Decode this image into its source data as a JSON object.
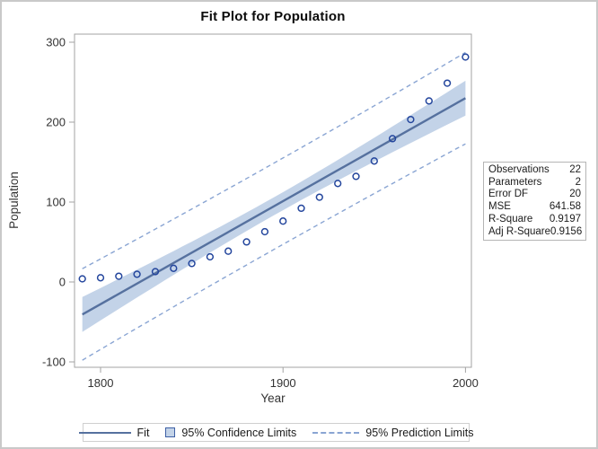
{
  "chart_data": {
    "type": "scatter",
    "title": "Fit Plot for Population",
    "xlabel": "Year",
    "ylabel": "Population",
    "x": [
      1790,
      1800,
      1810,
      1820,
      1830,
      1840,
      1850,
      1860,
      1870,
      1880,
      1890,
      1900,
      1910,
      1920,
      1930,
      1940,
      1950,
      1960,
      1970,
      1980,
      1990,
      2000
    ],
    "y": [
      3.929,
      5.308,
      7.24,
      9.638,
      12.866,
      17.069,
      23.192,
      31.443,
      38.558,
      50.156,
      62.948,
      76.212,
      92.228,
      106.022,
      123.203,
      132.165,
      151.326,
      179.323,
      203.302,
      226.542,
      248.71,
      281.422
    ],
    "xticks": [
      1800,
      1900,
      2000
    ],
    "yticks": [
      300,
      200,
      100,
      0,
      -100
    ],
    "xlim": [
      1786,
      2003
    ],
    "ylim": [
      -107,
      310
    ],
    "grid": false,
    "fit": {
      "slope": 1.28886,
      "intercept": -2347.72,
      "x_start": 1790,
      "x_end": 2000
    },
    "interval": {
      "t_crit": 2.086,
      "root_mse": 25.33,
      "n": 22,
      "x_mean": 1895,
      "sxx": 88550
    },
    "legend_position": "bottom",
    "legend": [
      {
        "label": "Fit",
        "swatch": "line"
      },
      {
        "label": "95% Confidence Limits",
        "swatch": "fill"
      },
      {
        "label": "95% Prediction Limits",
        "swatch": "dashed"
      }
    ],
    "colors": {
      "fit_line": "#56719f",
      "confidence_band": "#c3d3e8",
      "prediction_line": "#8aa5d3",
      "marker": "#24469d",
      "frame": "#a3a3a3",
      "text": "#333333"
    }
  },
  "stats_table": {
    "rows": [
      {
        "label": "Observations",
        "value": "22"
      },
      {
        "label": "Parameters",
        "value": "2"
      },
      {
        "label": "Error DF",
        "value": "20"
      },
      {
        "label": "MSE",
        "value": "641.58"
      },
      {
        "label": "R-Square",
        "value": "0.9197"
      },
      {
        "label": "Adj R-Square",
        "value": "0.9156"
      }
    ]
  }
}
